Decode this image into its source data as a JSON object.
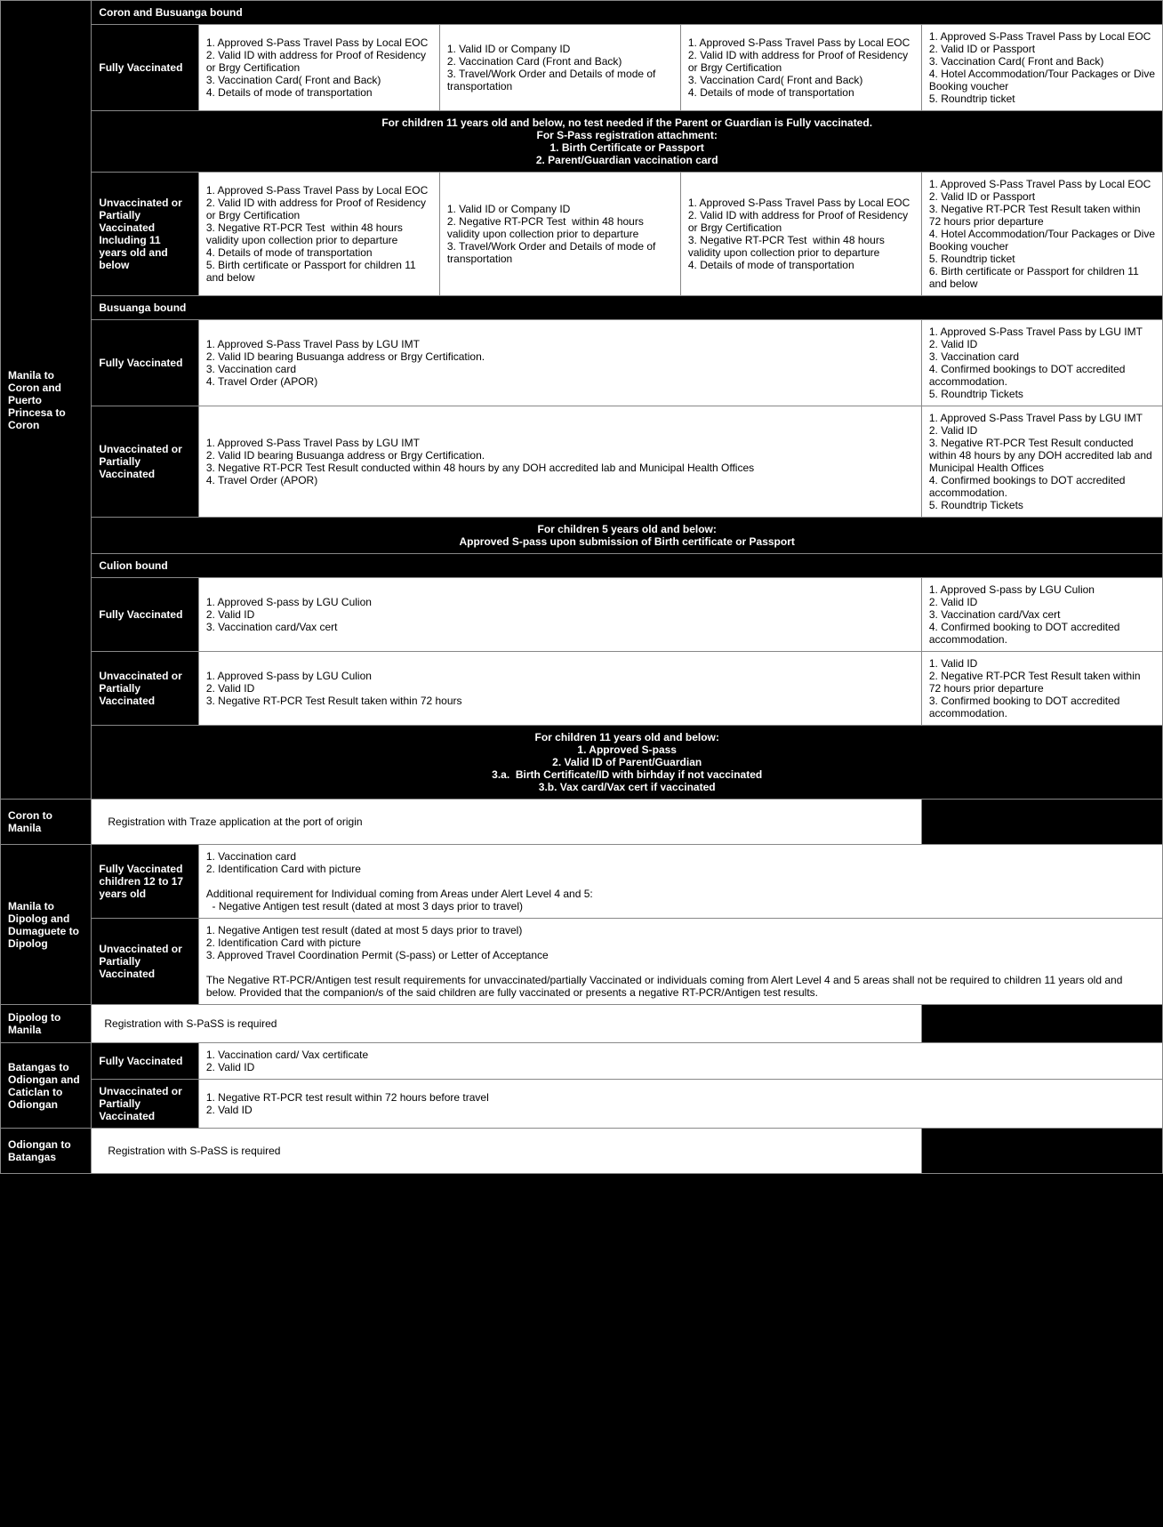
{
  "sections": {
    "coron_busuanga_header": "Coron and Busuanga bound",
    "mnl_coron_pps_coron_label": "Manila to Coron and Puerto Princesa to Coron",
    "fully_vaccinated": "Fully Vaccinated",
    "unvax_partial_11": "Unvaccinated or Partially Vaccinated Including 11 years old and below",
    "unvax_partial": "Unvaccinated  or Partially Vaccinated",
    "coron_fv_c1": "1. Approved S-Pass Travel Pass by Local EOC\n2. Valid ID with address for Proof of Residency or Brgy Certification\n3. Vaccination Card( Front and Back)\n4. Details of mode of transportation",
    "coron_fv_c2": "1. Valid ID or Company ID\n2. Vaccination Card (Front and Back)\n3. Travel/Work Order and Details of mode of transportation",
    "coron_fv_c3": "1. Approved S-Pass Travel Pass by Local EOC\n2. Valid ID with address for Proof of Residency or Brgy Certification\n3. Vaccination Card( Front and Back)\n4. Details of mode of transportation",
    "coron_fv_c4": "1. Approved S-Pass Travel Pass by Local EOC\n2. Valid ID or Passport\n3. Vaccination Card( Front and Back)\n4. Hotel Accommodation/Tour Packages or Dive Booking voucher\n5. Roundtrip ticket",
    "coron_note1": "For children 11 years old and below, no test needed if the Parent or Guardian is Fully vaccinated.\nFor S-Pass registration attachment:\n1. Birth Certificate or Passport\n2. Parent/Guardian vaccination card",
    "coron_uv_c1": "1. Approved S-Pass Travel Pass by Local EOC\n2. Valid ID with address for Proof of Residency or Brgy Certification\n3. Negative RT-PCR Test  within 48 hours validity upon collection prior to departure\n4. Details of mode of transportation\n5. Birth certificate or Passport for children 11 and below",
    "coron_uv_c2": "1. Valid ID or Company ID\n2. Negative RT-PCR Test  within 48 hours validity upon collection prior to departure\n3. Travel/Work Order and Details of mode of transportation",
    "coron_uv_c3": "1. Approved S-Pass Travel Pass by Local EOC\n2. Valid ID with address for Proof of Residency or Brgy Certification\n3. Negative RT-PCR Test  within 48 hours validity upon collection prior to departure\n4. Details of mode of transportation",
    "coron_uv_c4": "1. Approved S-Pass Travel Pass by Local EOC\n2. Valid ID or Passport\n3. Negative RT-PCR Test Result taken within 72 hours prior departure\n4. Hotel Accommodation/Tour Packages or Dive Booking voucher\n5. Roundtrip ticket\n6. Birth certificate or Passport for children 11 and below",
    "busuanga_header": "Busuanga bound",
    "busuanga_fv_span": "1. Approved S-Pass Travel Pass by LGU IMT\n2. Valid ID bearing Busuanga address or Brgy Certification.\n3. Vaccination card\n4. Travel Order (APOR)",
    "busuanga_fv_c4": "1. Approved S-Pass Travel Pass by LGU IMT\n2. Valid ID\n3. Vaccination card\n4. Confirmed bookings to DOT accredited accommodation.\n5. Roundtrip Tickets",
    "busuanga_uv_span": "1. Approved S-Pass Travel Pass by LGU IMT\n2. Valid ID bearing Busuanga address or Brgy Certification.\n3. Negative RT-PCR Test Result conducted within 48 hours by any DOH accredited lab and Municipal Health Offices\n4. Travel Order (APOR)",
    "busuanga_uv_c4": "1. Approved S-Pass Travel Pass by LGU IMT\n2. Valid ID\n3. Negative RT-PCR Test Result conducted within 48 hours by any DOH accredited lab and Municipal Health Offices\n4. Confirmed bookings to DOT accredited accommodation.\n5. Roundtrip Tickets",
    "busuanga_note": "For children 5 years old and below:\nApproved S-pass upon submission of Birth certificate or Passport",
    "culion_header": "Culion bound",
    "culion_fv_span": "1. Approved S-pass by LGU Culion\n2. Valid ID\n3. Vaccination card/Vax cert",
    "culion_fv_c4": "1. Approved S-pass by LGU Culion\n2. Valid ID\n3. Vaccination card/Vax cert\n4. Confirmed booking to DOT accredited accommodation.",
    "culion_uv_span": "1. Approved S-pass by LGU Culion\n2. Valid ID\n3. Negative RT-PCR Test Result taken within 72 hours",
    "culion_uv_c4": "1. Valid ID\n2. Negative RT-PCR Test Result taken within 72 hours prior departure\n3. Confirmed booking to DOT accredited accommodation.",
    "culion_note": "For children 11 years old and below:\n1. Approved S-pass\n2. Valid ID of Parent/Guardian\n3.a.  Birth Certificate/ID with birhday if not vaccinated\n3.b. Vax card/Vax cert if vaccinated",
    "coron_manila_label": "Coron to Manila",
    "coron_manila_text": "Registration with Traze application at the port of origin",
    "dipolog_route_label": "Manila to Dipolog and Dumaguete to Dipolog",
    "dipolog_fv_label": "Fully Vaccinated children 12 to 17 years old",
    "dipolog_fv_text": "1. Vaccination card\n2. Identification Card with picture\n\nAdditional requirement for Individual coming from Areas under Alert Level 4 and 5:\n  - Negative Antigen test result (dated at most 3 days prior to travel)",
    "dipolog_uv_text": "1. Negative Antigen test result (dated at most 5 days prior to travel)\n2. Identification Card with picture\n3. Approved Travel Coordination Permit (S-pass) or Letter of Acceptance\n\nThe Negative RT-PCR/Antigen test result requirements for unvaccinated/partially Vaccinated or individuals coming from Alert Level 4 and 5 areas shall not be required to children 11 years old and below. Provided that the companion/s of the said children are fully vaccinated or presents a negative RT-PCR/Antigen test results.",
    "dipolog_manila_label": "Dipolog to Manila",
    "spass_required": "Registration with S-PaSS is required",
    "batangas_od_label": "Batangas to Odiongan and Caticlan to Odiongan",
    "batangas_fv_text": "1. Vaccination card/ Vax certificate\n2. Valid ID",
    "batangas_uv_text": "1. Negative RT-PCR test result within 72 hours before travel\n2. Vald ID",
    "odiongan_batangas_label": "Odiongan to Batangas"
  }
}
